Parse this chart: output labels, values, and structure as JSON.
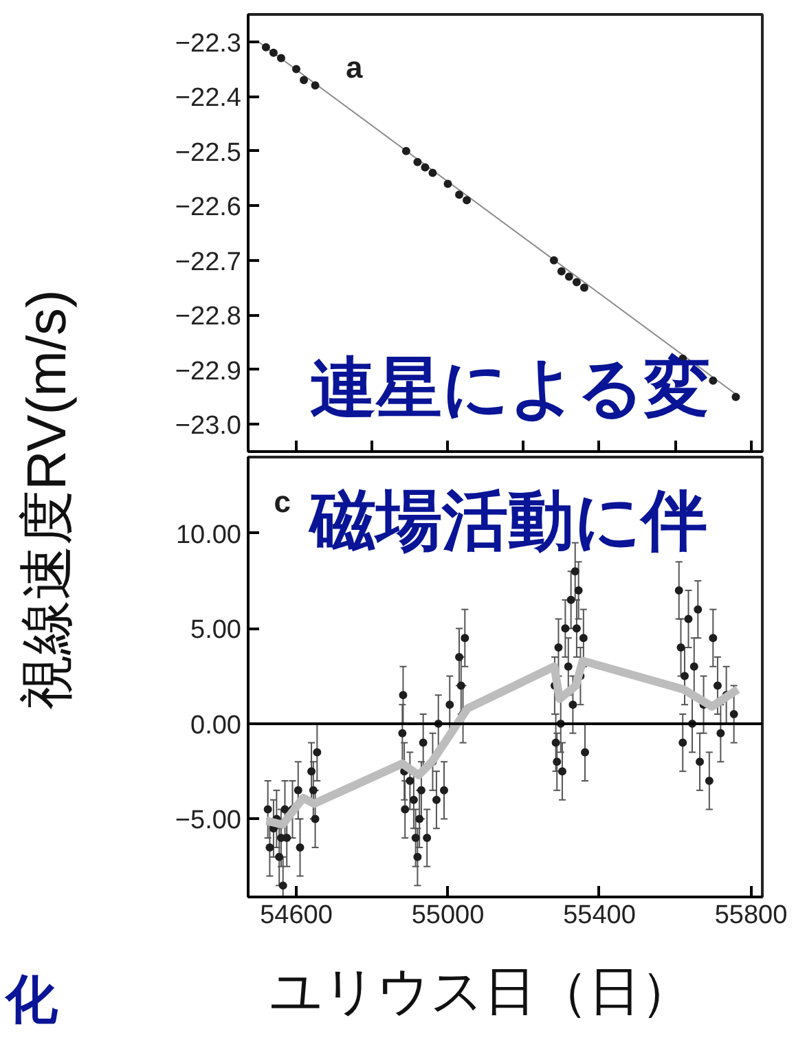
{
  "chart_data": [
    {
      "type": "line",
      "xlim": [
        54473,
        55830
      ],
      "ylim": [
        -23.05,
        -22.25
      ],
      "xticks": [
        {
          "value": 54600,
          "label": null
        },
        {
          "value": 54800,
          "label": null
        },
        {
          "value": 55000,
          "label": null
        },
        {
          "value": 55200,
          "label": null
        },
        {
          "value": 55400,
          "label": null
        },
        {
          "value": 55600,
          "label": null
        },
        {
          "value": 55800,
          "label": null
        }
      ],
      "yticks": [
        {
          "value": -22.3,
          "label": "−22.3"
        },
        {
          "value": -22.4,
          "label": "−22.4"
        },
        {
          "value": -22.5,
          "label": "−22.5"
        },
        {
          "value": -22.6,
          "label": "−22.6"
        },
        {
          "value": -22.7,
          "label": "−22.7"
        },
        {
          "value": -22.8,
          "label": "−22.8"
        },
        {
          "value": -22.9,
          "label": "−22.9"
        },
        {
          "value": -23.0,
          "label": "−23.0"
        }
      ],
      "tick_labels": "y",
      "series": [
        {
          "color": "#8c8c8c",
          "x": [
            54500,
            55770
          ],
          "values": [
            -22.3,
            -22.95
          ]
        },
        {
          "type": "scatter",
          "marker": "circle",
          "color": "#1e1e1e",
          "x": [
            54520,
            54540,
            54560,
            54600,
            54620,
            54650,
            54890,
            54920,
            54940,
            54960,
            55000,
            55030,
            55050,
            55280,
            55300,
            55320,
            55340,
            55360,
            55620,
            55700,
            55760
          ],
          "values": [
            -22.31,
            -22.32,
            -22.33,
            -22.35,
            -22.37,
            -22.38,
            -22.5,
            -22.52,
            -22.53,
            -22.54,
            -22.56,
            -22.58,
            -22.59,
            -22.7,
            -22.72,
            -22.73,
            -22.74,
            -22.75,
            -22.88,
            -22.92,
            -22.95
          ]
        }
      ],
      "annotations": [
        "a",
        "連星による変"
      ]
    },
    {
      "type": "scatter",
      "xlim": [
        54473,
        55830
      ],
      "ylim": [
        -9.1,
        14.0
      ],
      "xticks": [
        54600,
        55000,
        55400,
        55800
      ],
      "yticks": [
        {
          "value": 10,
          "label": "10.00"
        },
        {
          "value": 5,
          "label": "5.00"
        },
        {
          "value": 0,
          "label": "0.00"
        },
        {
          "value": -5,
          "label": "−5.00"
        }
      ],
      "xlabel": "ユリウス日（日）",
      "ylabel": "視線速度RV(m/s)",
      "ref_lines": [
        {
          "axis": "y",
          "value": 0,
          "label": null,
          "color": "#000000"
        }
      ],
      "series": [
        {
          "marker": "circle",
          "color": "#1e1e1e",
          "x": [
            54525,
            54530,
            54540,
            54548,
            54555,
            54560,
            54565,
            54570,
            54575,
            54590,
            54605,
            54610,
            54640,
            54645,
            54650,
            54655,
            54880,
            54882,
            54885,
            54887,
            54900,
            54910,
            54915,
            54920,
            54925,
            54930,
            54935,
            54945,
            54960,
            54970,
            54975,
            54990,
            55005,
            55030,
            55035,
            55040,
            55045,
            55282,
            55285,
            55288,
            55292,
            55298,
            55302,
            55310,
            55318,
            55325,
            55330,
            55336,
            55340,
            55345,
            55350,
            55358,
            55362,
            55610,
            55615,
            55620,
            55625,
            55635,
            55645,
            55650,
            55660,
            55665,
            55675,
            55690,
            55700,
            55712,
            55720,
            55735,
            55755
          ],
          "values": [
            -4.5,
            -6.5,
            -5.5,
            -5,
            -7,
            -6,
            -8.5,
            -4.5,
            -6,
            -4.5,
            -3.5,
            -6.5,
            -2.5,
            -3.5,
            -5,
            -1.5,
            -0.5,
            1.5,
            -2.5,
            -4.5,
            -3,
            -4,
            -6,
            -7,
            -5,
            -3.5,
            -1,
            -6,
            -2,
            -4,
            0,
            -3.5,
            1,
            3.5,
            2,
            0.5,
            4.5,
            2,
            -1,
            -2,
            4,
            0,
            -2.5,
            5,
            3,
            6.5,
            1,
            8,
            5,
            7,
            2.5,
            4.5,
            -1.5,
            7,
            4,
            -1,
            2.5,
            5.5,
            0,
            3,
            6,
            -2,
            1,
            -3,
            4.5,
            2,
            -0.5,
            1.5,
            0.5
          ],
          "errors": [
            1.5,
            1.5,
            1.5,
            1.5,
            1.5,
            1.5,
            1.5,
            1.5,
            1.5,
            1.5,
            1.5,
            1.5,
            1.5,
            1.5,
            1.5,
            1.5,
            1.5,
            1.5,
            1.5,
            1.5,
            1.5,
            1.5,
            1.5,
            1.5,
            1.5,
            1.5,
            1.5,
            1.5,
            1.5,
            1.5,
            1.5,
            1.5,
            1.5,
            1.5,
            1.5,
            1.5,
            1.5,
            1.5,
            1.5,
            1.5,
            1.5,
            1.5,
            1.5,
            1.5,
            1.5,
            1.5,
            1.5,
            1.5,
            1.5,
            1.5,
            1.5,
            1.5,
            1.5,
            1.5,
            1.5,
            1.5,
            1.5,
            1.5,
            1.5,
            1.5,
            1.5,
            1.5,
            1.5,
            1.5,
            1.5,
            1.5,
            1.5,
            1.5,
            1.5
          ]
        },
        {
          "type": "line",
          "color": "#bdbdbd",
          "x": [
            54521,
            54564,
            54618,
            54647,
            54880,
            54923,
            54958,
            55052,
            55281,
            55295,
            55338,
            55356,
            55622,
            55697,
            55765
          ],
          "values": [
            -5.1,
            -5.3,
            -3.9,
            -4.2,
            -2.1,
            -2.7,
            -2.0,
            0.8,
            3.0,
            1.3,
            2.0,
            3.3,
            1.8,
            0.9,
            1.8
          ]
        }
      ],
      "annotations": [
        "c",
        "磁場活動に伴",
        "化"
      ]
    }
  ]
}
